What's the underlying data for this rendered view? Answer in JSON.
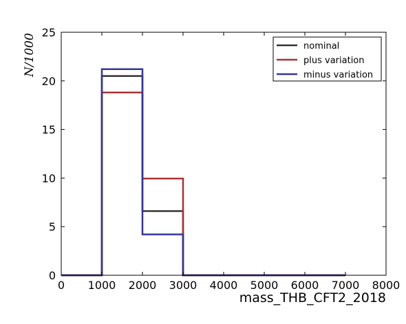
{
  "chart_data": {
    "type": "histogram",
    "xlabel": "mass_THB_CFT2_2018",
    "ylabel": "N/1000",
    "xlim": [
      0,
      8000
    ],
    "ylim": [
      0,
      25
    ],
    "xticks": [
      0,
      1000,
      2000,
      3000,
      4000,
      5000,
      6000,
      7000,
      8000
    ],
    "yticks": [
      0,
      5,
      10,
      15,
      20,
      25
    ],
    "bin_edges": [
      0,
      1000,
      2000,
      3000,
      4000,
      5000,
      6000,
      7000
    ],
    "grid": false,
    "legend_position": "top-right",
    "series": [
      {
        "name": "nominal",
        "color": "#333333",
        "values": [
          0,
          20.5,
          6.6,
          0,
          0,
          0,
          0
        ]
      },
      {
        "name": "plus variation",
        "color": "#a83232",
        "values": [
          0,
          18.8,
          9.95,
          0,
          0,
          0,
          0
        ]
      },
      {
        "name": "minus variation",
        "color": "#3333a0",
        "values": [
          0,
          21.2,
          4.2,
          0,
          0,
          0,
          0
        ]
      }
    ]
  }
}
